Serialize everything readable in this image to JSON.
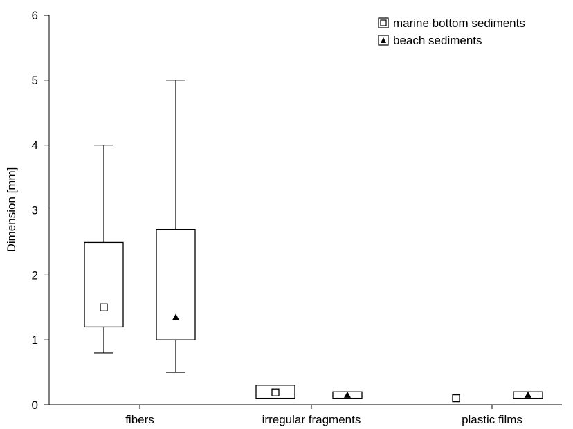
{
  "chart_data": {
    "type": "boxplot",
    "title": "",
    "xlabel": "",
    "ylabel": "Dimension [mm]",
    "ylim": [
      0,
      6
    ],
    "yticks": [
      0,
      1,
      2,
      3,
      4,
      5,
      6
    ],
    "categories": [
      "fibers",
      "irregular fragments",
      "plastic films"
    ],
    "legend": {
      "placement": "top-right"
    },
    "series": [
      {
        "name": "marine bottom sediments",
        "marker": "square",
        "values": [
          {
            "category": "fibers",
            "median": 1.5,
            "q1": 1.2,
            "q3": 2.5,
            "min": 0.8,
            "max": 4.0
          },
          {
            "category": "irregular fragments",
            "median": 0.19,
            "q1": 0.1,
            "q3": 0.3,
            "min": 0.1,
            "max": 0.3
          },
          {
            "category": "plastic films",
            "median": 0.1,
            "q1": 0.1,
            "q3": 0.1,
            "min": 0.1,
            "max": 0.1
          }
        ]
      },
      {
        "name": "beach sediments",
        "marker": "triangle",
        "values": [
          {
            "category": "fibers",
            "median": 1.35,
            "q1": 1.0,
            "q3": 2.7,
            "min": 0.5,
            "max": 5.0
          },
          {
            "category": "irregular fragments",
            "median": 0.15,
            "q1": 0.1,
            "q3": 0.2,
            "min": 0.1,
            "max": 0.2
          },
          {
            "category": "plastic films",
            "median": 0.15,
            "q1": 0.1,
            "q3": 0.2,
            "min": 0.1,
            "max": 0.2
          }
        ]
      }
    ]
  }
}
